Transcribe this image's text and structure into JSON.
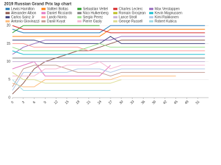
{
  "chart_data": {
    "type": "line",
    "title": "2019 Russian Grand Prix lap chart",
    "x": [
      0,
      3,
      6,
      9,
      12,
      15,
      18,
      21,
      24,
      27,
      30,
      33,
      36,
      39,
      42,
      45,
      48,
      51,
      53
    ],
    "xlim": [
      0,
      54
    ],
    "xticks": [
      0,
      3,
      6,
      9,
      12,
      15,
      18,
      21,
      24,
      27,
      30,
      33,
      36,
      39,
      42,
      45,
      48,
      51
    ],
    "ylim": [
      0,
      21
    ],
    "yticks": [
      0,
      5,
      10,
      15,
      20
    ],
    "grid": true,
    "series": [
      {
        "name": "Lewis Hamilton",
        "color": "#1f77b4",
        "values": [
          19,
          18,
          18,
          18,
          18,
          18,
          18,
          18,
          18,
          20,
          20,
          20,
          20,
          20,
          20,
          20,
          20,
          20,
          20
        ]
      },
      {
        "name": "Valtteri Bottas",
        "color": "#ff7f0e",
        "values": [
          17,
          17,
          17,
          17,
          17,
          17,
          17,
          17,
          17,
          19,
          19,
          19,
          19,
          19,
          19,
          19,
          19,
          19,
          19
        ]
      },
      {
        "name": "Sebastian Vettel",
        "color": "#2ca02c",
        "values": [
          18,
          20,
          20,
          20,
          20,
          20,
          20,
          20,
          20,
          null,
          null,
          null,
          null,
          null,
          null,
          null,
          null,
          null,
          null
        ]
      },
      {
        "name": "Charles Leclerc",
        "color": "#d62728",
        "values": [
          20,
          19,
          19,
          19,
          19,
          19,
          19,
          19,
          19,
          18,
          18,
          18,
          18,
          18,
          18,
          18,
          18,
          18,
          18
        ]
      },
      {
        "name": "Max Verstappen",
        "color": "#9467bd",
        "values": [
          12,
          14,
          15,
          16,
          16,
          16,
          16,
          16,
          16,
          16,
          17,
          17,
          17,
          17,
          17,
          17,
          17,
          17,
          17
        ]
      },
      {
        "name": "Alexander Albon",
        "color": "#8c564b",
        "values": [
          1,
          4,
          8,
          10,
          11,
          12,
          13,
          13,
          14,
          15,
          16,
          16,
          16,
          16,
          16,
          16,
          16,
          16,
          16
        ]
      },
      {
        "name": "Daniel Ricciardo",
        "color": "#e377c2",
        "values": [
          8,
          9,
          10,
          6,
          6,
          6,
          6,
          6,
          6,
          9,
          null,
          null,
          null,
          null,
          null,
          null,
          null,
          null,
          null
        ]
      },
      {
        "name": "Nico Hulkenberg",
        "color": "#7f7f7f",
        "values": [
          11,
          11,
          11,
          11,
          11,
          11,
          11,
          11,
          11,
          11,
          11,
          11,
          11,
          11,
          11,
          11,
          11,
          11,
          11
        ]
      },
      {
        "name": "Romain Grosjean",
        "color": "#bcbd22",
        "values": [
          9,
          null,
          null,
          null,
          null,
          null,
          null,
          null,
          null,
          null,
          null,
          null,
          null,
          null,
          null,
          null,
          null,
          null,
          null
        ]
      },
      {
        "name": "Kevin Magnussen",
        "color": "#17becf",
        "values": [
          13,
          12,
          12,
          12,
          12,
          12,
          12,
          12,
          12,
          12,
          12,
          12,
          12,
          12,
          12,
          12,
          12,
          12,
          12
        ]
      },
      {
        "name": "Carlos Sainz Jr",
        "color": "#393b79",
        "values": [
          16,
          16,
          16,
          15,
          15,
          15,
          15,
          15,
          15,
          17,
          15,
          15,
          15,
          15,
          15,
          15,
          15,
          15,
          15
        ]
      },
      {
        "name": "Lando Norris",
        "color": "#ff9896",
        "values": [
          15,
          15,
          14,
          14,
          14,
          14,
          14,
          13,
          13,
          13,
          13,
          13,
          13,
          13,
          13,
          13,
          13,
          13,
          13
        ]
      },
      {
        "name": "Sergio Perez",
        "color": "#98df8a",
        "values": [
          14,
          13,
          13,
          13,
          13,
          13,
          13,
          14,
          15,
          14,
          14,
          14,
          14,
          14,
          14,
          14,
          14,
          14,
          14
        ]
      },
      {
        "name": "Lance Stroll",
        "color": "#c5b0d5",
        "values": [
          10,
          10,
          10,
          10,
          10,
          10,
          10,
          10,
          10,
          10,
          10,
          10,
          10,
          10,
          10,
          10,
          10,
          10,
          10
        ]
      },
      {
        "name": "Kimi Raikkonen",
        "color": "#aec7e8",
        "values": [
          2,
          7,
          7,
          7,
          7,
          7,
          8,
          8,
          8,
          7,
          8,
          8,
          8,
          8,
          8,
          8,
          8,
          8,
          8
        ]
      },
      {
        "name": "Antonio Giovinazzi",
        "color": "#ffbb78",
        "values": [
          4,
          3,
          3,
          5,
          5,
          5,
          5,
          5,
          5,
          5,
          6,
          6,
          6,
          6,
          6,
          6,
          null,
          null,
          null
        ]
      },
      {
        "name": "Daniil Kvyat",
        "color": "#c49c94",
        "values": [
          3,
          8,
          9,
          9,
          9,
          8,
          7,
          7,
          7,
          6,
          7,
          7,
          7,
          7,
          7,
          7,
          7,
          7,
          7
        ]
      },
      {
        "name": "Pierre Gasly",
        "color": "#f7b6d2",
        "values": [
          6,
          6,
          6,
          8,
          8,
          9,
          9,
          9,
          10,
          8,
          9,
          9,
          9,
          9,
          9,
          9,
          9,
          9,
          9
        ]
      },
      {
        "name": "George Russell",
        "color": "#dbdb8d",
        "values": [
          7,
          5,
          5,
          4,
          4,
          4,
          4,
          4,
          4,
          4,
          5,
          null,
          null,
          null,
          null,
          null,
          null,
          null,
          null
        ]
      },
      {
        "name": "Robert Kubica",
        "color": "#9edae5",
        "values": [
          5,
          2,
          2,
          2,
          2,
          2,
          2,
          2,
          2,
          2,
          null,
          null,
          null,
          null,
          null,
          null,
          null,
          null,
          null
        ]
      }
    ]
  }
}
